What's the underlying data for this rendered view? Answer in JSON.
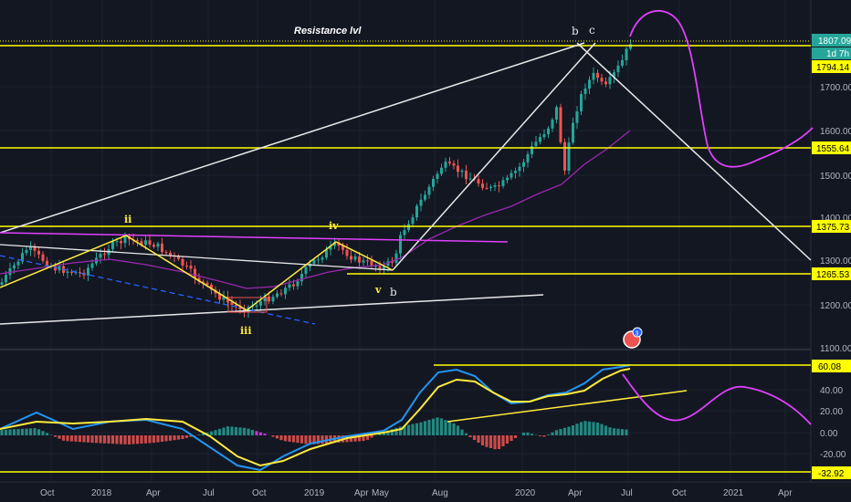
{
  "chart_title": "Resistance lvl",
  "main_price_axis": {
    "labels": [
      "1700.00",
      "1600.00",
      "1500.00",
      "1400.00",
      "1300.00",
      "1200.00",
      "1100.00"
    ]
  },
  "price_tags": {
    "last": "1807.09",
    "countdown": "1d 7h",
    "r1": "1794.14",
    "r2": "1555.64",
    "r3": "1375.73",
    "r4": "1265.53"
  },
  "indicator_axis": {
    "labels": [
      "40.00",
      "20.00",
      "0.00",
      "-20.00"
    ],
    "tag_top": "60.08",
    "tag_bottom": "-32.92"
  },
  "time_axis": {
    "labels": [
      "Oct",
      "2018",
      "Apr",
      "Jul",
      "Oct",
      "2019",
      "Apr",
      "May",
      "Aug",
      "2020",
      "Apr",
      "Jul",
      "Oct",
      "2021",
      "Apr"
    ]
  },
  "wave_labels": {
    "ii": "ii",
    "iii": "iii",
    "iv": "iv",
    "v": "v",
    "b_low": "b",
    "b_top": "b",
    "c_top": "c"
  },
  "event_badge": "3",
  "colors": {
    "background": "#131722",
    "resistance": "#ffff00",
    "projection": "#e040fb",
    "up_candle": "#26a69a",
    "down_candle": "#ef5350",
    "ma_line": "#9c27b0",
    "macd_line": "#2196f3",
    "signal_line": "#ffeb3b"
  }
}
